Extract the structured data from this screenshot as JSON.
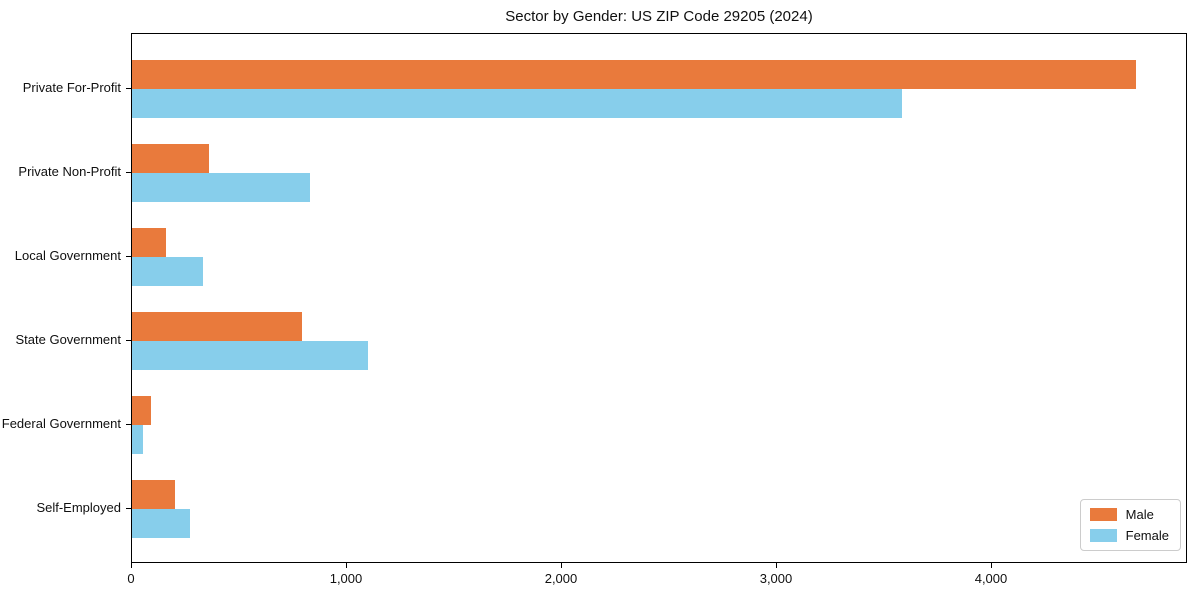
{
  "chart_data": {
    "type": "bar",
    "orientation": "horizontal",
    "title": "Sector by Gender: US ZIP Code 29205 (2024)",
    "categories": [
      "Private For-Profit",
      "Private Non-Profit",
      "Local Government",
      "State Government",
      "Federal Government",
      "Self-Employed"
    ],
    "series": [
      {
        "name": "Male",
        "color": "#e97a3c",
        "values": [
          4670,
          360,
          160,
          790,
          90,
          200
        ]
      },
      {
        "name": "Female",
        "color": "#87ceeb",
        "values": [
          3580,
          830,
          330,
          1100,
          50,
          270
        ]
      }
    ],
    "xlabel": "",
    "ylabel": "",
    "xlim": [
      0,
      4912
    ],
    "xticks": [
      0,
      1000,
      2000,
      3000,
      4000
    ],
    "xtick_labels": [
      "0",
      "1,000",
      "2,000",
      "3,000",
      "4,000"
    ],
    "grid": false,
    "legend_position": "lower right",
    "frame": "full-box",
    "background_color": "#ffffff",
    "text_color": "#101010"
  }
}
